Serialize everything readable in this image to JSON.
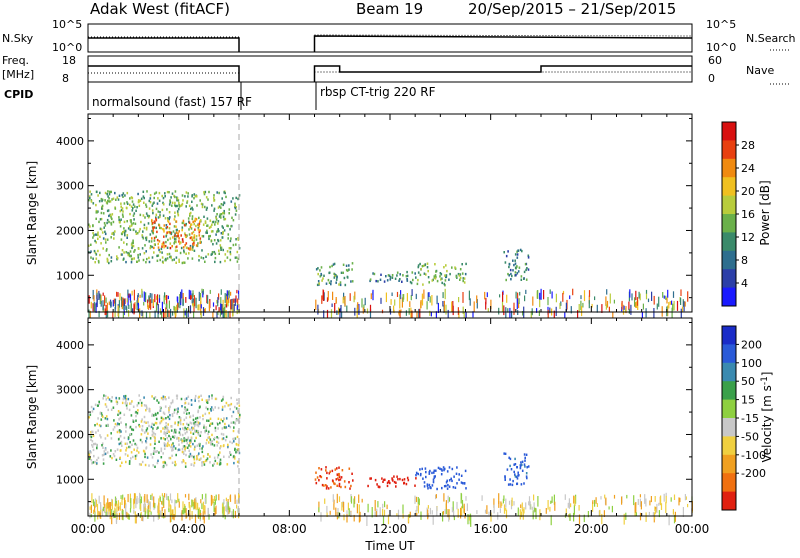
{
  "header": {
    "station": "Adak West (fitACF)",
    "beam": "Beam 19",
    "dates": "20/Sep/2015 – 21/Sep/2015"
  },
  "labels": {
    "nsky": "N.Sky",
    "nsearch": "N.Search",
    "freq1": "Freq.",
    "freq2": "[MHz]",
    "nave": "Nave",
    "cpid": "CPID",
    "noise_max": "10^5",
    "noise_min": "10^0",
    "freq_top": "18",
    "freq_bottom": "8",
    "nave_top": "60",
    "nave_bottom": "0",
    "cpid_1": "normalsound (fast) 157 RF",
    "cpid_2": "rbsp CT-trig 220 RF"
  },
  "colors": {
    "power": [
      "#1a1aff",
      "#2c3fa8",
      "#2e6e8e",
      "#3a8a6a",
      "#6ab04a",
      "#b8cc3c",
      "#f0c020",
      "#f08a10",
      "#e84010",
      "#d81010"
    ],
    "velocity": [
      "#1a2cc8",
      "#2a5ad8",
      "#3a8ab0",
      "#3aa04a",
      "#8ed040",
      "#c8c8c8",
      "#f0d040",
      "#f0a020",
      "#f07010",
      "#e02010"
    ]
  },
  "chart_data": {
    "type": "heatmap",
    "x_ticks": [
      "00:00",
      "04:00",
      "08:00",
      "12:00",
      "16:00",
      "20:00",
      "00:00"
    ],
    "x_range_hours": [
      0,
      24
    ],
    "xlabel": "Time UT",
    "ylabel": "Slant Range [km]",
    "y_ticks": [
      "1000",
      "2000",
      "3000",
      "4000"
    ],
    "y_range_km": [
      180,
      4600
    ],
    "power": {
      "label": "Power [dB]",
      "ticks": [
        "4",
        "8",
        "12",
        "16",
        "20",
        "24",
        "28"
      ],
      "range": [
        0,
        32
      ]
    },
    "velocity": {
      "label": "Velocity [m s^-1]",
      "ticks": [
        "-200",
        "-100",
        "-50",
        "-15",
        "15",
        "50",
        "100",
        "200"
      ]
    },
    "data_gap_hours": [
      6,
      9
    ],
    "scatter_regions": [
      {
        "t0": 0.0,
        "t1": 6.0,
        "r0": 1300,
        "r1": 2900,
        "power": 14,
        "velocity": 5
      },
      {
        "t0": 2.5,
        "t1": 4.5,
        "r0": 1600,
        "r1": 2300,
        "power": 24,
        "velocity": 0
      },
      {
        "t0": 9.0,
        "t1": 10.5,
        "r0": 800,
        "r1": 1300,
        "power": 12,
        "velocity": -150
      },
      {
        "t0": 11.0,
        "t1": 13.0,
        "r0": 850,
        "r1": 1100,
        "power": 10,
        "velocity": -200
      },
      {
        "t0": 13.0,
        "t1": 15.0,
        "r0": 800,
        "r1": 1300,
        "power": 14,
        "velocity": 120
      },
      {
        "t0": 16.5,
        "t1": 17.5,
        "r0": 900,
        "r1": 1600,
        "power": 10,
        "velocity": 100
      }
    ]
  }
}
